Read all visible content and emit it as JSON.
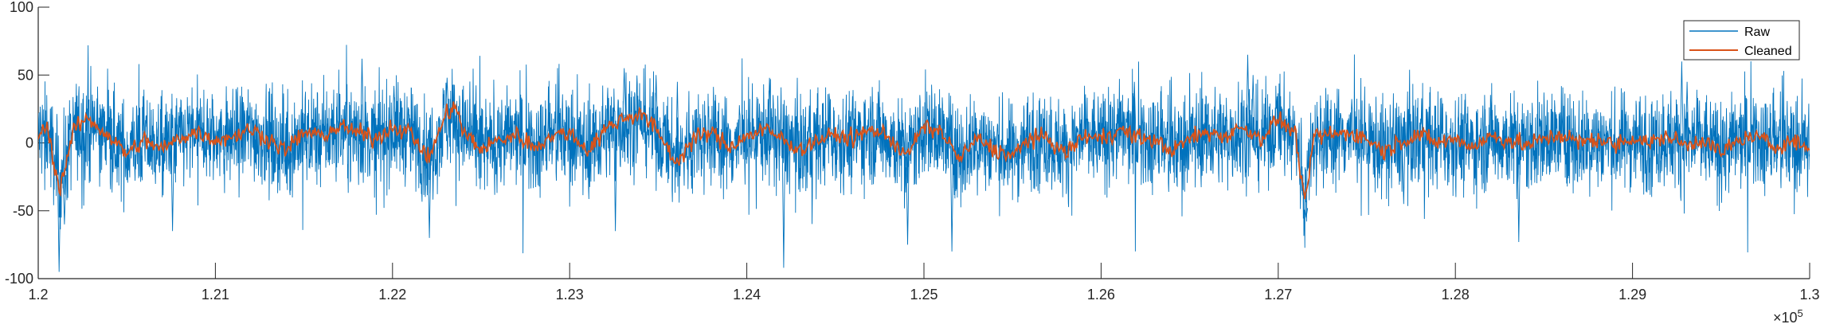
{
  "chart_data": {
    "type": "line",
    "title": "",
    "xlabel": "",
    "ylabel": "",
    "xlim": [
      120000,
      130000
    ],
    "ylim": [
      -100,
      100
    ],
    "x_ticks": [
      1.2,
      1.21,
      1.22,
      1.23,
      1.24,
      1.25,
      1.26,
      1.27,
      1.28,
      1.29,
      1.3
    ],
    "x_tick_labels": [
      "1.2",
      "1.21",
      "1.22",
      "1.23",
      "1.24",
      "1.25",
      "1.26",
      "1.27",
      "1.28",
      "1.29",
      "1.3"
    ],
    "x_exponent_base": "×10",
    "x_exponent": "5",
    "y_ticks": [
      100,
      50,
      0,
      -50,
      -100
    ],
    "y_tick_labels": [
      "100",
      "50",
      "0",
      "-50",
      "-100"
    ],
    "grid": false,
    "legend_position": "top-right",
    "colors": {
      "raw": "#0072BD",
      "cleaned": "#D95319",
      "axis": "#262626"
    },
    "series": [
      {
        "name": "Raw",
        "color": "#0072BD",
        "note_values": "dense noisy signal approx. within ±45 with spikes",
        "amplitude": 18,
        "spikes": [
          {
            "x": 120110,
            "y": -95
          },
          {
            "x": 120140,
            "y": -60
          },
          {
            "x": 120750,
            "y": -65
          },
          {
            "x": 121820,
            "y": 62
          },
          {
            "x": 122000,
            "y": 42
          },
          {
            "x": 122200,
            "y": -70
          },
          {
            "x": 122300,
            "y": 48
          },
          {
            "x": 123250,
            "y": -65
          },
          {
            "x": 123300,
            "y": 55
          },
          {
            "x": 123480,
            "y": 50
          },
          {
            "x": 123600,
            "y": 45
          },
          {
            "x": 124120,
            "y": 48
          },
          {
            "x": 124200,
            "y": -92
          },
          {
            "x": 124900,
            "y": -75
          },
          {
            "x": 125150,
            "y": -80
          },
          {
            "x": 126180,
            "y": 45
          },
          {
            "x": 126820,
            "y": 65
          },
          {
            "x": 126850,
            "y": 50
          },
          {
            "x": 127150,
            "y": -55
          },
          {
            "x": 127700,
            "y": -45
          },
          {
            "x": 128350,
            "y": -73
          },
          {
            "x": 129270,
            "y": 60
          },
          {
            "x": 129300,
            "y": 45
          }
        ]
      },
      {
        "name": "Cleaned",
        "color": "#D95319",
        "x": [
          120000,
          120050,
          120120,
          120200,
          120280,
          120400,
          120500,
          120600,
          120700,
          120800,
          120900,
          121000,
          121100,
          121200,
          121300,
          121400,
          121500,
          121600,
          121700,
          121800,
          121900,
          122000,
          122100,
          122200,
          122300,
          122350,
          122400,
          122500,
          122600,
          122700,
          122800,
          122900,
          123000,
          123100,
          123200,
          123300,
          123400,
          123500,
          123600,
          123700,
          123800,
          123900,
          124000,
          124100,
          124200,
          124300,
          124400,
          124500,
          124600,
          124700,
          124800,
          124900,
          125000,
          125100,
          125200,
          125300,
          125400,
          125500,
          125600,
          125700,
          125800,
          125900,
          126000,
          126100,
          126200,
          126300,
          126400,
          126500,
          126600,
          126700,
          126800,
          126900,
          127000,
          127100,
          127150,
          127200,
          127300,
          127400,
          127500,
          127600,
          127700,
          127800,
          127900,
          128000,
          128100,
          128200,
          128300,
          128400,
          128500,
          128600,
          128700,
          128800,
          128900,
          129000,
          129100,
          129200,
          129300,
          129400,
          129500,
          129600,
          129700,
          129800,
          129900,
          130000
        ],
        "y": [
          5,
          12,
          -35,
          10,
          18,
          5,
          -8,
          2,
          -5,
          4,
          8,
          2,
          5,
          10,
          3,
          -6,
          8,
          5,
          12,
          8,
          3,
          12,
          8,
          -12,
          20,
          28,
          8,
          -5,
          2,
          6,
          -3,
          5,
          8,
          -6,
          10,
          18,
          22,
          8,
          -15,
          3,
          8,
          -3,
          5,
          10,
          3,
          -5,
          2,
          6,
          3,
          10,
          5,
          -10,
          12,
          8,
          -12,
          3,
          -5,
          -10,
          4,
          3,
          -8,
          5,
          3,
          10,
          4,
          2,
          -6,
          3,
          8,
          5,
          12,
          3,
          18,
          6,
          -48,
          5,
          6,
          8,
          3,
          -6,
          2,
          6,
          0,
          3,
          -3,
          5,
          2,
          -2,
          3,
          6,
          0,
          3,
          -2,
          4,
          0,
          5,
          -2,
          3,
          -8,
          2,
          5,
          -3,
          2,
          -5
        ]
      }
    ]
  }
}
